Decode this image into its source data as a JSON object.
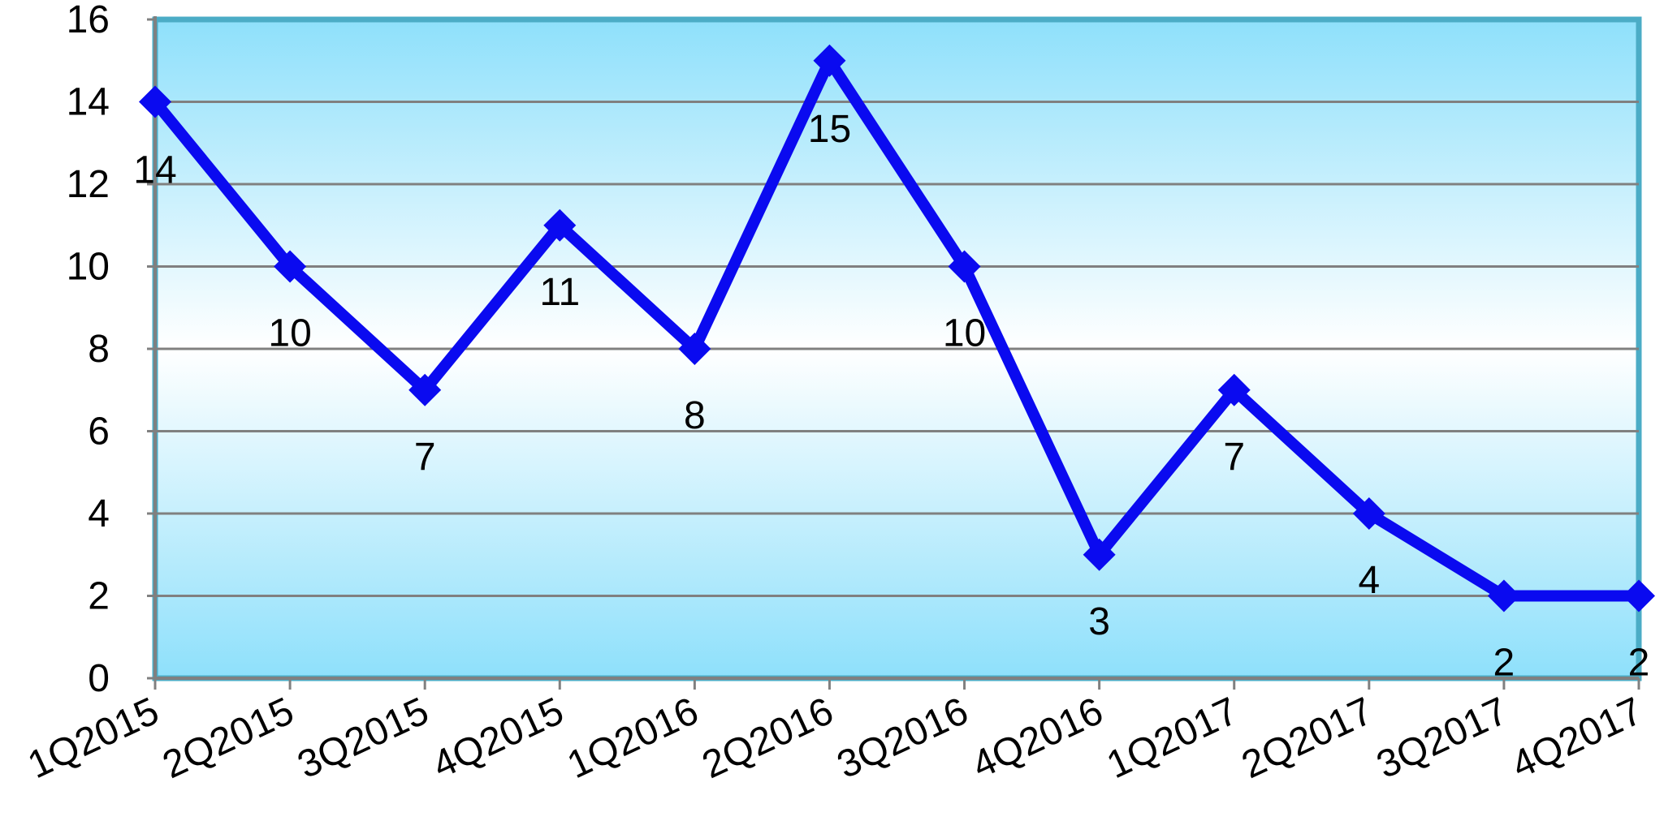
{
  "chart_data": {
    "type": "line",
    "categories": [
      "1Q2015",
      "2Q2015",
      "3Q2015",
      "4Q2015",
      "1Q2016",
      "2Q2016",
      "3Q2016",
      "4Q2016",
      "1Q2017",
      "2Q2017",
      "3Q2017",
      "4Q2017"
    ],
    "series": [
      {
        "values": [
          14,
          10,
          7,
          11,
          8,
          15,
          10,
          3,
          7,
          4,
          2,
          2
        ],
        "color": "#0a0af0",
        "marker": "diamond"
      }
    ],
    "y_ticks": [
      "0",
      "2",
      "4",
      "6",
      "8",
      "10",
      "12",
      "14",
      "16"
    ],
    "ylim": [
      0,
      16
    ],
    "title": "",
    "xlabel": "",
    "ylabel": "",
    "grid": true,
    "legend": "none",
    "colors": {
      "plot_gradient_edge": "#8ee0fb",
      "plot_gradient_center": "#ffffff",
      "plot_border": "#4bacc6",
      "gridline": "#808080",
      "line": "#0a0af0"
    }
  }
}
